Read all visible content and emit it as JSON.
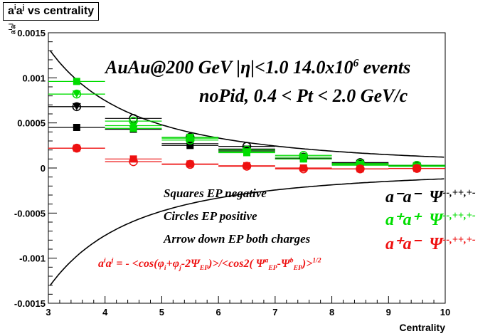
{
  "title": {
    "base": "a",
    "sup1": "i",
    "mid": "a",
    "sup2": "j",
    "tail": " vs centrality"
  },
  "annotations": {
    "line1": {
      "pre": "AuAu@200 GeV |η|<1.0 14.0x10",
      "sup": "6",
      "post": " events"
    },
    "line2": "noPid, 0.4 < Pt < 2.0 GeV/c",
    "squares": "Squares EP negative",
    "circles": "Circles EP positive",
    "arrows": "Arrow down EP both charges",
    "formula": {
      "a": "a",
      "i": "i",
      "a2": "a",
      "j": "j",
      "p1": " = - <cos(φ",
      "s1": "i",
      "p2": "+φ",
      "s2": "j",
      "p3": "-2Ψ",
      "s3": "EP",
      "p4": ")>/<cos2( Ψ",
      "sup4": "a",
      "sub4": "EP",
      "p5": "-Ψ",
      "sup5": "b",
      "sub5": "EP",
      "p6": ")>",
      "sup6": "1/2"
    }
  },
  "legend": [
    {
      "pair": "a⁻a⁻",
      "label": "Ψ",
      "sup": "--,++,+-",
      "color": "#000000"
    },
    {
      "pair": "a⁺a⁺",
      "label": "Ψ",
      "sup": "--,++,+-",
      "color": "#00dd00"
    },
    {
      "pair": "a⁺a⁻",
      "label": "Ψ",
      "sup": "--,++,+-",
      "color": "#ee1111"
    }
  ],
  "axis": {
    "xlabel": "Centrality",
    "ylabel_base": "a",
    "ylabel_sup1": "i",
    "ylabel_mid": "a",
    "ylabel_sup2": "j"
  },
  "chart_data": {
    "type": "scatter",
    "xlabel": "Centrality",
    "xlim": [
      3,
      10
    ],
    "ylim": [
      -0.0015,
      0.0015
    ],
    "xticks": [
      "3",
      "4",
      "5",
      "6",
      "7",
      "8",
      "9",
      "10"
    ],
    "yticks": [
      "-0.0015",
      "-0.001",
      "-0.0005",
      "0",
      "0.0005",
      "0.001",
      "0.0015"
    ],
    "x": [
      3.5,
      4.5,
      5.5,
      6.5,
      7.5,
      8.5,
      9.5
    ],
    "series": [
      {
        "name": "a-a- squares",
        "color": "#000000",
        "marker": "square",
        "values": [
          0.00045,
          0.00043,
          0.00025,
          0.00021,
          0.000105,
          4.5e-05,
          2.5e-05
        ]
      },
      {
        "name": "a-a- circles",
        "color": "#000000",
        "marker": "circle",
        "values": [
          0.00068,
          0.00055,
          0.00034,
          0.00024,
          0.00012,
          6e-05,
          3e-05
        ]
      },
      {
        "name": "a-a- arrows",
        "color": "#000000",
        "marker": "triangle-down",
        "values": [
          0.00068,
          0.00043,
          0.00027,
          0.00019,
          0.0001,
          5e-05,
          2e-05
        ]
      },
      {
        "name": "a+a+ squares",
        "color": "#00dd00",
        "marker": "square",
        "values": [
          0.00096,
          0.00044,
          0.00033,
          0.00017,
          0.0001,
          3e-05,
          2e-05
        ]
      },
      {
        "name": "a+a+ circles",
        "color": "#00dd00",
        "marker": "circle",
        "values": [
          0.00082,
          0.00052,
          0.00031,
          0.0002,
          0.00014,
          5e-05,
          3e-05
        ]
      },
      {
        "name": "a+a+ arrows",
        "color": "#00dd00",
        "marker": "triangle-down",
        "values": [
          0.00082,
          0.00047,
          0.00034,
          0.00018,
          0.00012,
          4e-05,
          2e-05
        ]
      },
      {
        "name": "a+a- squares",
        "color": "#ee1111",
        "marker": "square",
        "values": [
          0.00022,
          0.0001,
          4.5e-05,
          2.5e-05,
          0.0,
          -1e-05,
          -5e-06
        ]
      },
      {
        "name": "a+a- circles",
        "color": "#ee1111",
        "marker": "circle",
        "values": [
          0.00022,
          7e-05,
          4e-05,
          2e-05,
          -1e-05,
          -1e-05,
          -5e-06
        ]
      }
    ],
    "curves": {
      "upper_coefficient": 0.0133,
      "lower_coefficient": -0.0133,
      "form": "c / x^2 (approx)"
    }
  }
}
